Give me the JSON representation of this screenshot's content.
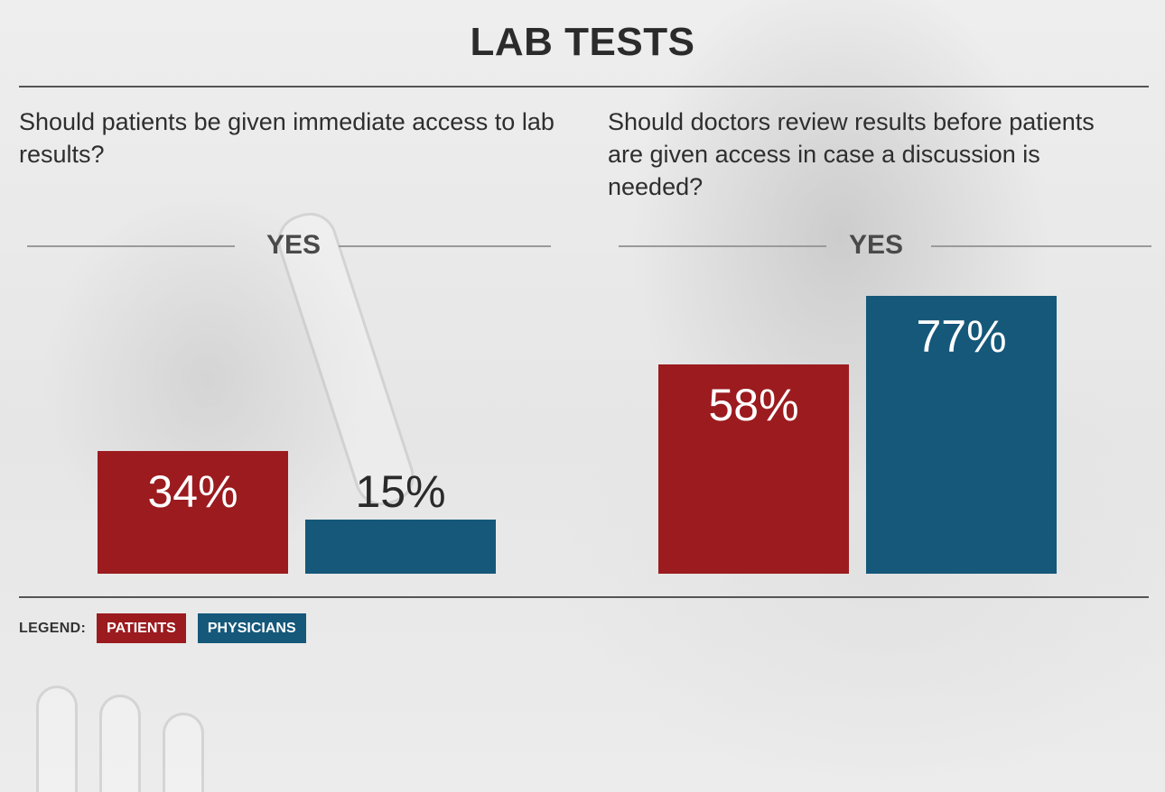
{
  "title": "LAB TESTS",
  "colors": {
    "patients": "#9b1b1f",
    "physicians": "#15587a"
  },
  "chart_data": [
    {
      "type": "bar",
      "question": "Should patients be given immediate access to lab results?",
      "group_label": "YES",
      "categories": [
        "PATIENTS",
        "PHYSICIANS"
      ],
      "values": [
        34,
        15
      ],
      "labels": [
        "34%",
        "15%"
      ],
      "ylim": [
        0,
        100
      ]
    },
    {
      "type": "bar",
      "question": "Should doctors review results before patients are given access in case a discussion is needed?",
      "group_label": "YES",
      "categories": [
        "PATIENTS",
        "PHYSICIANS"
      ],
      "values": [
        58,
        77
      ],
      "labels": [
        "58%",
        "77%"
      ],
      "ylim": [
        0,
        100
      ]
    }
  ],
  "legend": {
    "title": "LEGEND:",
    "items": [
      "PATIENTS",
      "PHYSICIANS"
    ]
  }
}
